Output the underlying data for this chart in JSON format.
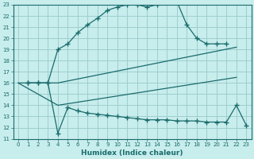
{
  "xlabel": "Humidex (Indice chaleur)",
  "bg_color": "#c8eded",
  "grid_color": "#9ecece",
  "line_color": "#1a6b6b",
  "xlim": [
    -0.5,
    23.5
  ],
  "ylim": [
    11,
    23
  ],
  "xticks": [
    0,
    1,
    2,
    3,
    4,
    5,
    6,
    7,
    8,
    9,
    10,
    11,
    12,
    13,
    14,
    15,
    16,
    17,
    18,
    19,
    20,
    21,
    22,
    23
  ],
  "yticks": [
    11,
    12,
    13,
    14,
    15,
    16,
    17,
    18,
    19,
    20,
    21,
    22,
    23
  ],
  "line1_x": [
    1,
    2,
    3,
    4,
    5,
    6,
    7,
    8,
    9,
    10,
    11,
    12,
    13,
    14,
    15,
    16,
    17,
    18,
    19,
    20,
    21
  ],
  "line1_y": [
    16,
    16,
    16,
    19,
    19.5,
    20.5,
    21.2,
    21.8,
    22.5,
    22.8,
    23.0,
    23.0,
    22.8,
    23.0,
    23.2,
    23.3,
    21.2,
    20.0,
    19.5,
    19.5,
    19.5
  ],
  "line2_x": [
    0,
    4,
    22
  ],
  "line2_y": [
    16,
    16,
    19.2
  ],
  "line3_x": [
    0,
    4,
    22
  ],
  "line3_y": [
    16,
    14,
    16.5
  ],
  "line4_x": [
    1,
    2,
    3,
    4,
    5,
    6,
    7,
    8,
    9,
    10,
    11,
    12,
    13,
    14,
    15,
    16,
    17,
    18,
    19,
    20,
    21,
    22,
    23
  ],
  "line4_y": [
    16,
    16,
    16,
    11.5,
    13.8,
    13.5,
    13.3,
    13.2,
    13.1,
    13.0,
    12.9,
    12.8,
    12.7,
    12.7,
    12.7,
    12.6,
    12.6,
    12.6,
    12.5,
    12.5,
    12.5,
    14.0,
    12.2
  ]
}
